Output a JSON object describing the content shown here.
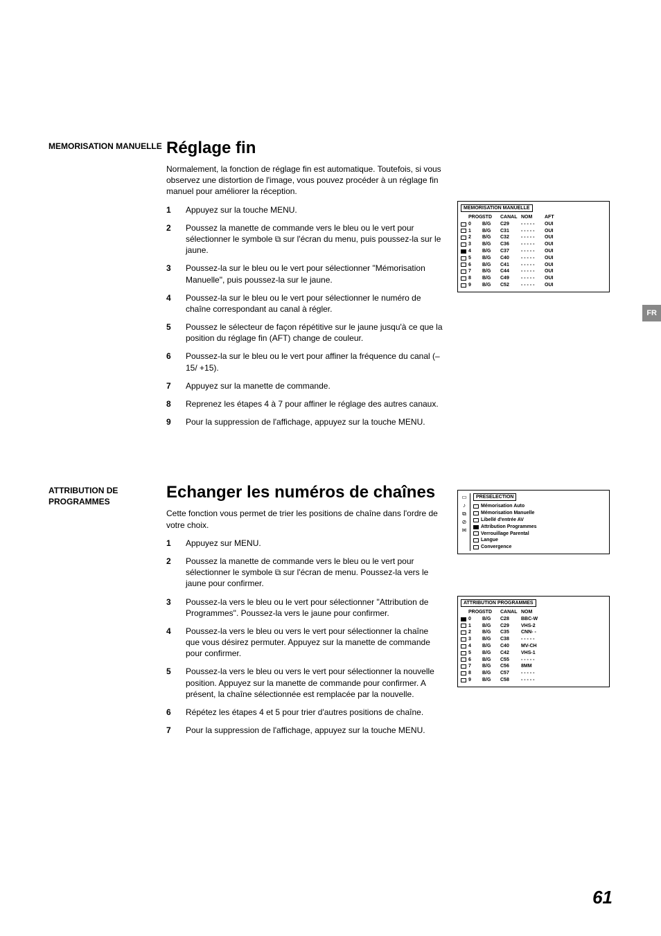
{
  "fr_badge": "FR",
  "page_number": "61",
  "section1": {
    "side_label": "MEMORISATION MANUELLE",
    "heading": "Réglage fin",
    "intro": "Normalement, la fonction de réglage fin est automatique. Toutefois, si vous observez une distortion de l'image, vous pouvez procéder à un réglage fin manuel pour améliorer la réception.",
    "steps": [
      "Appuyez sur la touche MENU.",
      "Poussez la manette de commande vers le bleu ou le vert pour sélectionner le symbole  ⧉  sur l'écran du menu, puis poussez-la sur le jaune.",
      "Poussez-la sur le bleu ou le vert pour sélectionner \"Mémorisation Manuelle\", puis poussez-la sur le jaune.",
      "Poussez-la sur le bleu ou le vert pour sélectionner le numéro de chaîne correspondant au canal à régler.",
      "Poussez le sélecteur de façon répétitive sur le jaune jusqu'à ce que la position du réglage fin (AFT) change de couleur.",
      "Poussez-la sur le bleu ou le vert pour affiner la fréquence du canal (–15/ +15).",
      "Appuyez sur la manette de commande.",
      "Reprenez les étapes 4 à 7 pour affiner le réglage des autres canaux.",
      "Pour la suppression de l'affichage, appuyez sur la touche MENU."
    ],
    "osd": {
      "title": "MEMORISATION MANUELLE",
      "headers": [
        "PROG",
        "STD",
        "CANAL",
        "NOM",
        "AFT"
      ],
      "rows": [
        {
          "filled": false,
          "prog": "0",
          "std": "B/G",
          "canal": "C29",
          "nom": "- - - - -",
          "aft": "OUI"
        },
        {
          "filled": false,
          "prog": "1",
          "std": "B/G",
          "canal": "C31",
          "nom": "- - - - -",
          "aft": "OUI"
        },
        {
          "filled": false,
          "prog": "2",
          "std": "B/G",
          "canal": "C32",
          "nom": "- - - - -",
          "aft": "OUI"
        },
        {
          "filled": false,
          "prog": "3",
          "std": "B/G",
          "canal": "C36",
          "nom": "- - - - -",
          "aft": "OUI"
        },
        {
          "filled": true,
          "prog": "4",
          "std": "B/G",
          "canal": "C37",
          "nom": "- - - - -",
          "aft": "OUI"
        },
        {
          "filled": false,
          "prog": "5",
          "std": "B/G",
          "canal": "C40",
          "nom": "- - - - -",
          "aft": "OUI"
        },
        {
          "filled": false,
          "prog": "6",
          "std": "B/G",
          "canal": "C41",
          "nom": "- - - - -",
          "aft": "OUI"
        },
        {
          "filled": false,
          "prog": "7",
          "std": "B/G",
          "canal": "C44",
          "nom": "- - - - -",
          "aft": "OUI"
        },
        {
          "filled": false,
          "prog": "8",
          "std": "B/G",
          "canal": "C49",
          "nom": "- - - - -",
          "aft": "OUI"
        },
        {
          "filled": false,
          "prog": "9",
          "std": "B/G",
          "canal": "C52",
          "nom": "- - - - -",
          "aft": "OUI"
        }
      ]
    }
  },
  "section2": {
    "side_label": "ATTRIBUTION DE PROGRAMMES",
    "heading": "Echanger les numéros de chaînes",
    "intro": "Cette fonction vous permet de trier les positions de chaîne dans l'ordre de votre choix.",
    "steps": [
      "Appuyez sur MENU.",
      "Poussez la manette de commande vers le bleu ou le vert pour sélectionner le symbole  ⧉  sur l'écran de menu. Poussez-la vers le jaune pour confirmer.",
      "Poussez-la vers le bleu ou le vert pour sélectionner \"Attribution de Programmes\". Poussez-la vers le jaune pour confirmer.",
      "Poussez-la vers le bleu ou vers le vert pour sélectionner la chaîne que vous désirez permuter. Appuyez sur la manette de commande pour confirmer.",
      "Poussez-la vers le bleu ou vers le vert pour sélectionner la nouvelle position. Appuyez sur la manette de commande pour confirmer.\nA présent, la chaîne sélectionnée est remplacée par la nouvelle.",
      "Répétez les étapes 4 et 5 pour trier d'autres positions de chaîne.",
      "Pour la suppression de l'affichage, appuyez sur la touche MENU."
    ],
    "osd_preselection": {
      "title": "PRESELECTION",
      "icons": [
        "▭",
        "♪",
        "⧉",
        "⊘",
        "✉"
      ],
      "items": [
        {
          "filled": false,
          "label": "Mémorisation Auto"
        },
        {
          "filled": false,
          "label": "Mémorisation Manuelle"
        },
        {
          "filled": false,
          "label": "Libellé d'entrée AV"
        },
        {
          "filled": true,
          "label": "Attribution Programmes"
        },
        {
          "filled": false,
          "label": "Verrouillage Parental"
        },
        {
          "filled": false,
          "label": "Langue"
        },
        {
          "filled": false,
          "label": "Convergence"
        }
      ]
    },
    "osd_attribution": {
      "title": "ATTRIBUTION PROGRAMMES",
      "headers": [
        "PROG",
        "STD",
        "CANAL",
        "NOM"
      ],
      "rows": [
        {
          "filled": true,
          "prog": "0",
          "std": "B/G",
          "canal": "C28",
          "nom": "BBC-W"
        },
        {
          "filled": false,
          "prog": "1",
          "std": "B/G",
          "canal": "C29",
          "nom": "VHS-2"
        },
        {
          "filled": false,
          "prog": "2",
          "std": "B/G",
          "canal": "C35",
          "nom": "CNN- -"
        },
        {
          "filled": false,
          "prog": "3",
          "std": "B/G",
          "canal": "C38",
          "nom": "- - - - -"
        },
        {
          "filled": false,
          "prog": "4",
          "std": "B/G",
          "canal": "C40",
          "nom": "MV-CH"
        },
        {
          "filled": false,
          "prog": "5",
          "std": "B/G",
          "canal": "C42",
          "nom": "VHS-1"
        },
        {
          "filled": false,
          "prog": "6",
          "std": "B/G",
          "canal": "C55",
          "nom": "- - - - -"
        },
        {
          "filled": false,
          "prog": "7",
          "std": "B/G",
          "canal": "C56",
          "nom": "8MM"
        },
        {
          "filled": false,
          "prog": "8",
          "std": "B/G",
          "canal": "C57",
          "nom": "- - - - -"
        },
        {
          "filled": false,
          "prog": "9",
          "std": "B/G",
          "canal": "C58",
          "nom": "- - - - -"
        }
      ]
    }
  }
}
